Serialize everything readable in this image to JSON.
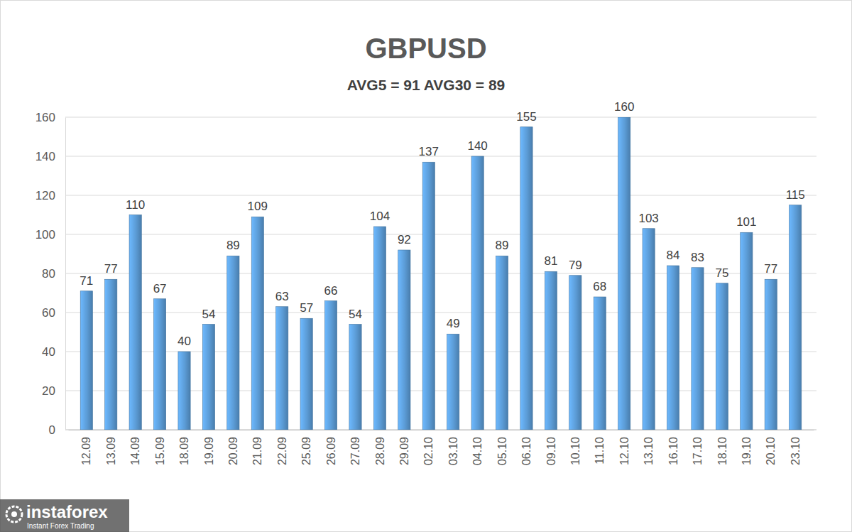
{
  "chart_data": {
    "type": "bar",
    "title": "GBPUSD",
    "subtitle": "AVG5 = 91 AVG30 = 89",
    "categories": [
      "12.09",
      "13.09",
      "14.09",
      "15.09",
      "18.09",
      "19.09",
      "20.09",
      "21.09",
      "22.09",
      "25.09",
      "26.09",
      "27.09",
      "28.09",
      "29.09",
      "02.10",
      "03.10",
      "04.10",
      "05.10",
      "06.10",
      "09.10",
      "10.10",
      "11.10",
      "12.10",
      "13.10",
      "16.10",
      "17.10",
      "18.10",
      "19.10",
      "20.10",
      "23.10"
    ],
    "values": [
      71,
      77,
      110,
      67,
      40,
      54,
      89,
      109,
      63,
      57,
      66,
      54,
      104,
      92,
      137,
      49,
      140,
      89,
      155,
      81,
      79,
      68,
      160,
      103,
      84,
      83,
      75,
      101,
      77,
      115
    ],
    "color": "#5b9bd5",
    "ylim": [
      0,
      160
    ],
    "yticks": [
      0,
      20,
      40,
      60,
      80,
      100,
      120,
      140,
      160
    ],
    "grid": true,
    "data_labels": true,
    "annotations": [
      "instaforex",
      "Instant Forex Trading"
    ]
  }
}
